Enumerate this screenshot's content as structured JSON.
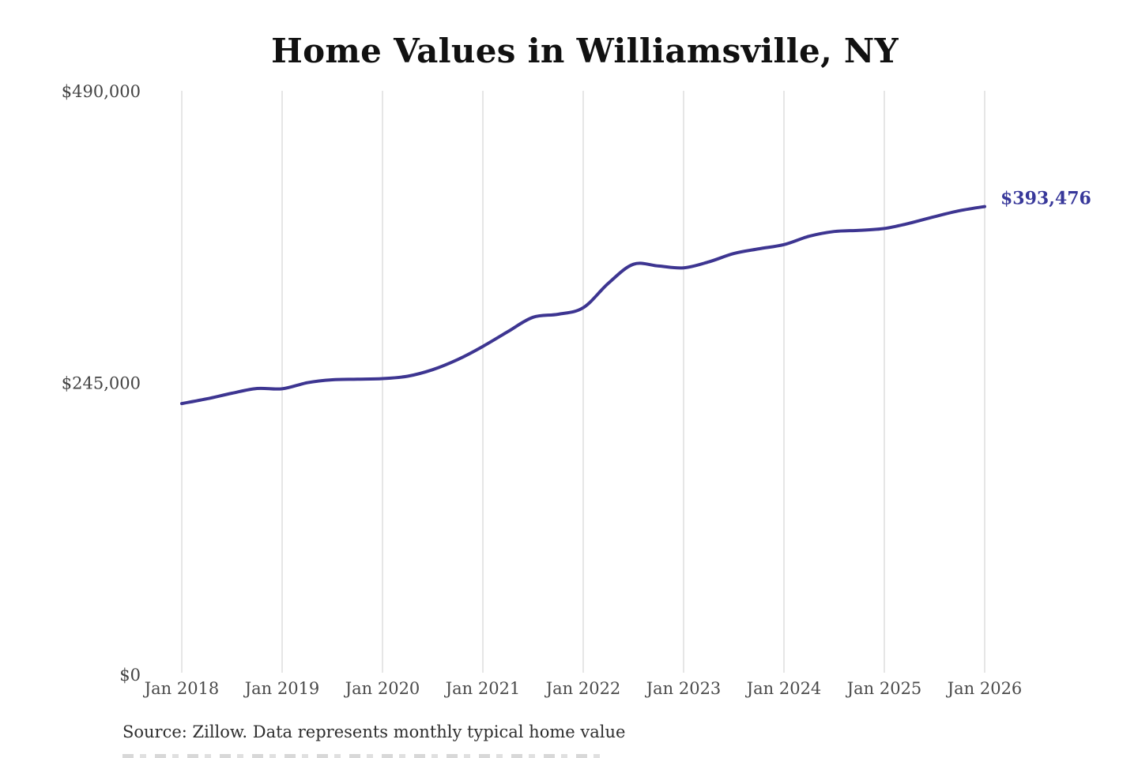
{
  "page": {
    "title": "Home Values in Williamsville, NY",
    "source_note": "Source: Zillow. Data represents monthly typical home value"
  },
  "chart_data": {
    "type": "line",
    "title": "Home Values in Williamsville, NY",
    "xlabel": "",
    "ylabel": "",
    "ylim": [
      0,
      490000
    ],
    "grid": "vertical-only",
    "legend_position": "none",
    "end_label": "$393,476",
    "last_value": 393476,
    "y_ticks": [
      {
        "label": "$0",
        "value": 0
      },
      {
        "label": "$245,000",
        "value": 245000
      },
      {
        "label": "$490,000",
        "value": 490000
      }
    ],
    "x_ticks": [
      {
        "label": "Jan 2018",
        "at": 0
      },
      {
        "label": "Jan 2019",
        "at": 4
      },
      {
        "label": "Jan 2020",
        "at": 8
      },
      {
        "label": "Jan 2021",
        "at": 12
      },
      {
        "label": "Jan 2022",
        "at": 16
      },
      {
        "label": "Jan 2023",
        "at": 20
      },
      {
        "label": "Jan 2024",
        "at": 24
      },
      {
        "label": "Jan 2025",
        "at": 28
      },
      {
        "label": "Jan 2026",
        "at": 32
      }
    ],
    "series": [
      {
        "name": "Monthly typical home value",
        "points": [
          {
            "date": "Jan 2018",
            "value": 228000
          },
          {
            "date": "Apr 2018",
            "value": 232000
          },
          {
            "date": "Jul 2018",
            "value": 236700
          },
          {
            "date": "Oct 2018",
            "value": 240700
          },
          {
            "date": "Jan 2019",
            "value": 240400
          },
          {
            "date": "Apr 2019",
            "value": 245500
          },
          {
            "date": "Jul 2019",
            "value": 248000
          },
          {
            "date": "Oct 2019",
            "value": 248500
          },
          {
            "date": "Jan 2020",
            "value": 249000
          },
          {
            "date": "Apr 2020",
            "value": 251000
          },
          {
            "date": "Jul 2020",
            "value": 256500
          },
          {
            "date": "Oct 2020",
            "value": 265000
          },
          {
            "date": "Jan 2021",
            "value": 276000
          },
          {
            "date": "Apr 2021",
            "value": 288500
          },
          {
            "date": "Jul 2021",
            "value": 300500
          },
          {
            "date": "Oct 2021",
            "value": 303000
          },
          {
            "date": "Jan 2022",
            "value": 308500
          },
          {
            "date": "Apr 2022",
            "value": 329000
          },
          {
            "date": "Jul 2022",
            "value": 345000
          },
          {
            "date": "Oct 2022",
            "value": 343500
          },
          {
            "date": "Jan 2023",
            "value": 342000
          },
          {
            "date": "Apr 2023",
            "value": 347000
          },
          {
            "date": "Jul 2023",
            "value": 354000
          },
          {
            "date": "Oct 2023",
            "value": 358000
          },
          {
            "date": "Jan 2024",
            "value": 361500
          },
          {
            "date": "Apr 2024",
            "value": 368500
          },
          {
            "date": "Jul 2024",
            "value": 372500
          },
          {
            "date": "Oct 2024",
            "value": 373500
          },
          {
            "date": "Jan 2025",
            "value": 375000
          },
          {
            "date": "Apr 2025",
            "value": 379500
          },
          {
            "date": "Jul 2025",
            "value": 385000
          },
          {
            "date": "Oct 2025",
            "value": 390000
          },
          {
            "date": "Jan 2026",
            "value": 393476
          }
        ]
      }
    ],
    "colors": {
      "line": "#3d3591",
      "end_label": "#38389a",
      "grid": "#cccccc",
      "axis_text": "#454545",
      "title_text": "#111111"
    }
  }
}
